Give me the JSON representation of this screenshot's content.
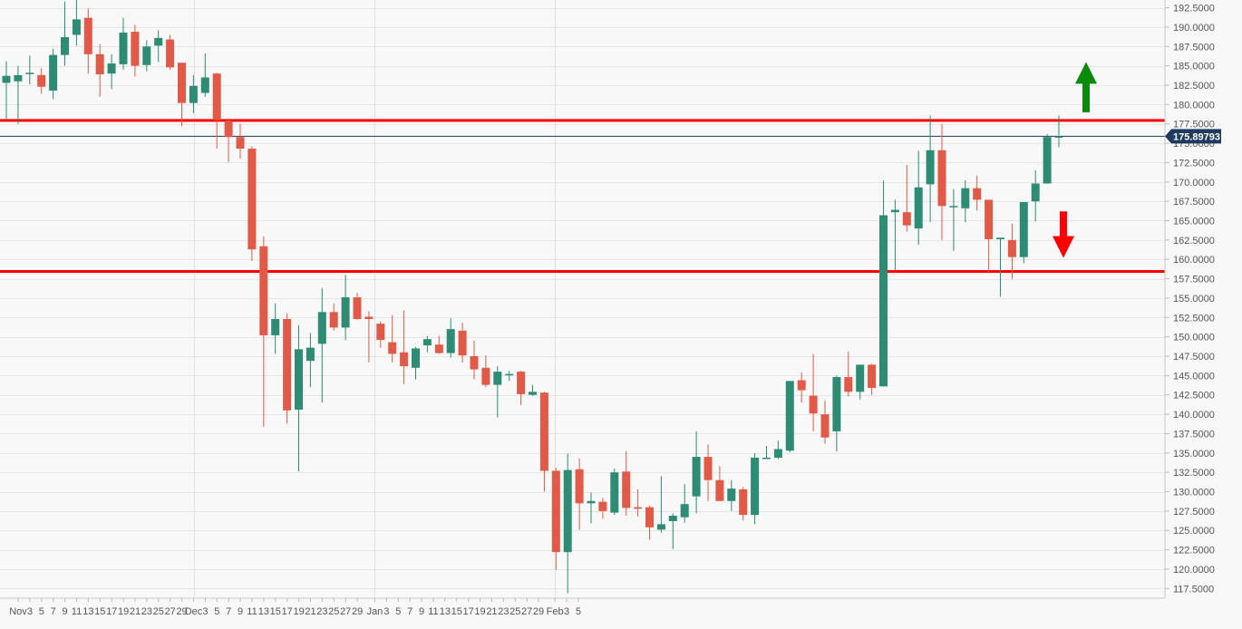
{
  "chart_data": {
    "type": "candlestick",
    "title": "",
    "xlabel": "",
    "ylabel": "",
    "ylim": [
      116.25,
      193.5
    ],
    "grid": true,
    "colors": {
      "up": "#2e8b74",
      "down": "#e05a47",
      "resistance": "#ff0000",
      "current_price_line": "#1f3a5c",
      "current_price_badge": "#1f3a5c",
      "arrow_up": "#0a8a0a",
      "arrow_down": "#ff0000"
    },
    "y_ticks": [
      117.5,
      120,
      122.5,
      125,
      127.5,
      130,
      132.5,
      135,
      137.5,
      140,
      142.5,
      145,
      147.5,
      150,
      152.5,
      155,
      157.5,
      160,
      162.5,
      165,
      167.5,
      170,
      172.5,
      175,
      177.5,
      180,
      182.5,
      185,
      187.5,
      190,
      192.5
    ],
    "y_tick_labels": [
      "117.5000",
      "120.0000",
      "122.5000",
      "125.0000",
      "127.5000",
      "130.0000",
      "132.5000",
      "135.0000",
      "137.5000",
      "140.0000",
      "142.5000",
      "145.0000",
      "147.5000",
      "150.0000",
      "152.5000",
      "155.0000",
      "157.5000",
      "160.0000",
      "162.5000",
      "165.0000",
      "167.5000",
      "170.0000",
      "172.5000",
      "175.0000",
      "177.5000",
      "180.0000",
      "182.5000",
      "185.0000",
      "187.5000",
      "190.0000",
      "192.5000"
    ],
    "x_tick_labels": [
      "Nov",
      "3",
      "5",
      "7",
      "9",
      "11",
      "13",
      "15",
      "17",
      "19",
      "21",
      "23",
      "25",
      "27",
      "29",
      "Dec",
      "3",
      "5",
      "7",
      "9",
      "11",
      "13",
      "15",
      "17",
      "19",
      "21",
      "23",
      "25",
      "27",
      "29",
      "Jan",
      "3",
      "5",
      "7",
      "9",
      "11",
      "13",
      "15",
      "17",
      "19",
      "21",
      "23",
      "25",
      "27",
      "29",
      "Feb",
      "3",
      "5"
    ],
    "x_tick_slots": [
      0,
      1,
      2,
      3,
      4,
      5,
      6,
      7,
      8,
      9,
      10,
      11,
      12,
      13,
      14,
      15,
      16,
      17,
      18,
      19,
      20,
      21,
      22,
      23,
      24,
      25,
      26,
      27,
      28,
      29,
      30.5,
      31.5,
      32.5,
      33.5,
      34.5,
      35.5,
      36.5,
      37.5,
      38.5,
      39.5,
      40.5,
      41.5,
      42.5,
      43.5,
      44.5,
      45.9,
      46.9,
      47.9
    ],
    "vertical_grid_labels": [
      "Dec",
      "Jan",
      "Feb"
    ],
    "candles": [
      {
        "o": 182.8,
        "h": 185.6,
        "l": 178.0,
        "c": 183.7
      },
      {
        "o": 183.0,
        "h": 185.0,
        "l": 177.5,
        "c": 183.8
      },
      {
        "o": 184.1,
        "h": 186.3,
        "l": 182.6,
        "c": 184.1
      },
      {
        "o": 183.8,
        "h": 184.7,
        "l": 181.4,
        "c": 182.3
      },
      {
        "o": 181.8,
        "h": 187.2,
        "l": 180.7,
        "c": 186.4
      },
      {
        "o": 186.4,
        "h": 193.3,
        "l": 185.0,
        "c": 188.7
      },
      {
        "o": 189.0,
        "h": 193.5,
        "l": 187.6,
        "c": 191.0
      },
      {
        "o": 191.2,
        "h": 192.4,
        "l": 184.0,
        "c": 186.5
      },
      {
        "o": 186.5,
        "h": 187.8,
        "l": 181.0,
        "c": 183.9
      },
      {
        "o": 184.0,
        "h": 186.5,
        "l": 182.0,
        "c": 185.3
      },
      {
        "o": 185.2,
        "h": 191.2,
        "l": 184.5,
        "c": 189.3
      },
      {
        "o": 189.4,
        "h": 190.3,
        "l": 183.6,
        "c": 185.0
      },
      {
        "o": 185.1,
        "h": 188.3,
        "l": 184.3,
        "c": 187.5
      },
      {
        "o": 187.6,
        "h": 189.6,
        "l": 185.5,
        "c": 188.6
      },
      {
        "o": 188.4,
        "h": 189.0,
        "l": 184.5,
        "c": 184.8
      },
      {
        "o": 185.4,
        "h": 185.3,
        "l": 177.2,
        "c": 180.2
      },
      {
        "o": 180.2,
        "h": 183.8,
        "l": 178.9,
        "c": 182.4
      },
      {
        "o": 181.5,
        "h": 186.6,
        "l": 181.0,
        "c": 183.5
      },
      {
        "o": 184.0,
        "h": 184.1,
        "l": 174.3,
        "c": 178.0
      },
      {
        "o": 177.9,
        "h": 178.2,
        "l": 172.6,
        "c": 175.8
      },
      {
        "o": 175.8,
        "h": 177.5,
        "l": 173.0,
        "c": 174.3
      },
      {
        "o": 174.3,
        "h": 174.6,
        "l": 159.8,
        "c": 161.3
      },
      {
        "o": 161.7,
        "h": 163.0,
        "l": 138.4,
        "c": 150.2
      },
      {
        "o": 150.2,
        "h": 154.3,
        "l": 147.8,
        "c": 152.3
      },
      {
        "o": 152.3,
        "h": 153.0,
        "l": 138.8,
        "c": 140.5
      },
      {
        "o": 140.6,
        "h": 151.5,
        "l": 132.6,
        "c": 148.4
      },
      {
        "o": 146.9,
        "h": 150.5,
        "l": 143.5,
        "c": 148.6
      },
      {
        "o": 149.1,
        "h": 156.3,
        "l": 141.5,
        "c": 153.2
      },
      {
        "o": 153.2,
        "h": 154.3,
        "l": 150.8,
        "c": 151.2
      },
      {
        "o": 151.2,
        "h": 158.0,
        "l": 149.6,
        "c": 155.1
      },
      {
        "o": 155.1,
        "h": 155.7,
        "l": 152.2,
        "c": 152.3
      },
      {
        "o": 152.6,
        "h": 153.3,
        "l": 146.7,
        "c": 152.3
      },
      {
        "o": 151.7,
        "h": 152.0,
        "l": 148.6,
        "c": 149.6
      },
      {
        "o": 149.3,
        "h": 152.8,
        "l": 146.7,
        "c": 147.8
      },
      {
        "o": 148.0,
        "h": 153.4,
        "l": 143.9,
        "c": 146.2
      },
      {
        "o": 146.0,
        "h": 148.7,
        "l": 144.5,
        "c": 148.5
      },
      {
        "o": 148.9,
        "h": 150.1,
        "l": 148.0,
        "c": 149.7
      },
      {
        "o": 149.0,
        "h": 150.1,
        "l": 147.8,
        "c": 147.9
      },
      {
        "o": 147.9,
        "h": 152.4,
        "l": 147.3,
        "c": 151.0
      },
      {
        "o": 150.8,
        "h": 151.8,
        "l": 146.7,
        "c": 147.6
      },
      {
        "o": 147.5,
        "h": 149.5,
        "l": 144.5,
        "c": 145.8
      },
      {
        "o": 146.0,
        "h": 147.6,
        "l": 143.5,
        "c": 143.8
      },
      {
        "o": 143.8,
        "h": 146.2,
        "l": 139.6,
        "c": 145.5
      },
      {
        "o": 145.2,
        "h": 145.6,
        "l": 144.3,
        "c": 145.2
      },
      {
        "o": 145.5,
        "h": 145.6,
        "l": 141.2,
        "c": 142.6
      },
      {
        "o": 142.5,
        "h": 143.8,
        "l": 142.4,
        "c": 142.9
      },
      {
        "o": 142.8,
        "h": 142.9,
        "l": 130.0,
        "c": 132.7
      },
      {
        "o": 132.7,
        "h": 133.1,
        "l": 119.9,
        "c": 122.2
      },
      {
        "o": 122.2,
        "h": 134.9,
        "l": 116.9,
        "c": 132.8
      },
      {
        "o": 132.9,
        "h": 134.3,
        "l": 125.1,
        "c": 128.5
      },
      {
        "o": 128.5,
        "h": 129.9,
        "l": 125.9,
        "c": 128.8
      },
      {
        "o": 128.7,
        "h": 129.2,
        "l": 126.5,
        "c": 127.5
      },
      {
        "o": 127.3,
        "h": 133.0,
        "l": 127.0,
        "c": 132.5
      },
      {
        "o": 132.6,
        "h": 135.2,
        "l": 126.9,
        "c": 127.9
      },
      {
        "o": 128.0,
        "h": 130.3,
        "l": 126.8,
        "c": 127.8
      },
      {
        "o": 128.0,
        "h": 128.2,
        "l": 123.8,
        "c": 125.4
      },
      {
        "o": 125.1,
        "h": 132.0,
        "l": 124.7,
        "c": 125.8
      },
      {
        "o": 126.2,
        "h": 127.2,
        "l": 122.6,
        "c": 126.9
      },
      {
        "o": 126.7,
        "h": 131.0,
        "l": 126.0,
        "c": 128.4
      },
      {
        "o": 129.4,
        "h": 137.8,
        "l": 127.2,
        "c": 134.5
      },
      {
        "o": 134.5,
        "h": 136.1,
        "l": 128.8,
        "c": 131.5
      },
      {
        "o": 131.5,
        "h": 133.3,
        "l": 128.9,
        "c": 128.8
      },
      {
        "o": 128.8,
        "h": 131.5,
        "l": 127.5,
        "c": 130.4
      },
      {
        "o": 130.3,
        "h": 130.6,
        "l": 126.3,
        "c": 127.0
      },
      {
        "o": 127.0,
        "h": 135.0,
        "l": 125.8,
        "c": 134.4
      },
      {
        "o": 134.4,
        "h": 135.9,
        "l": 134.3,
        "c": 134.4
      },
      {
        "o": 134.4,
        "h": 136.6,
        "l": 134.2,
        "c": 135.5
      },
      {
        "o": 135.3,
        "h": 144.1,
        "l": 135.1,
        "c": 144.3
      },
      {
        "o": 144.4,
        "h": 145.4,
        "l": 141.5,
        "c": 143.1
      },
      {
        "o": 142.4,
        "h": 147.8,
        "l": 137.8,
        "c": 140.1
      },
      {
        "o": 140.0,
        "h": 141.8,
        "l": 136.2,
        "c": 137.0
      },
      {
        "o": 137.8,
        "h": 145.0,
        "l": 135.2,
        "c": 144.8
      },
      {
        "o": 144.8,
        "h": 148.1,
        "l": 142.3,
        "c": 142.9
      },
      {
        "o": 142.9,
        "h": 146.3,
        "l": 141.9,
        "c": 146.4
      },
      {
        "o": 146.4,
        "h": 146.5,
        "l": 142.5,
        "c": 143.4
      },
      {
        "o": 143.6,
        "h": 170.2,
        "l": 143.6,
        "c": 165.7
      },
      {
        "o": 166.1,
        "h": 167.7,
        "l": 158.6,
        "c": 166.4
      },
      {
        "o": 166.1,
        "h": 172.2,
        "l": 163.6,
        "c": 164.4
      },
      {
        "o": 164.0,
        "h": 174.0,
        "l": 161.9,
        "c": 169.3
      },
      {
        "o": 169.7,
        "h": 178.6,
        "l": 164.8,
        "c": 174.1
      },
      {
        "o": 174.1,
        "h": 177.5,
        "l": 162.5,
        "c": 166.9
      },
      {
        "o": 166.9,
        "h": 169.1,
        "l": 161.1,
        "c": 166.9
      },
      {
        "o": 166.6,
        "h": 170.2,
        "l": 164.8,
        "c": 169.2
      },
      {
        "o": 169.2,
        "h": 170.8,
        "l": 166.3,
        "c": 167.7
      },
      {
        "o": 167.7,
        "h": 167.3,
        "l": 158.4,
        "c": 162.6
      },
      {
        "o": 162.6,
        "h": 162.6,
        "l": 155.2,
        "c": 162.8
      },
      {
        "o": 162.5,
        "h": 164.6,
        "l": 157.5,
        "c": 160.3
      },
      {
        "o": 160.3,
        "h": 167.4,
        "l": 159.5,
        "c": 167.4
      },
      {
        "o": 167.5,
        "h": 171.5,
        "l": 164.9,
        "c": 169.8
      },
      {
        "o": 169.8,
        "h": 176.2,
        "l": 170.5,
        "c": 175.8
      },
      {
        "o": 175.8,
        "h": 178.6,
        "l": 174.5,
        "c": 175.9
      }
    ],
    "horizontal_lines": [
      {
        "kind": "resistance",
        "value": 177.95
      },
      {
        "kind": "support",
        "value": 158.45
      }
    ],
    "current_price": 175.89793,
    "current_price_label": "175.89793",
    "arrows": [
      {
        "direction": "up",
        "color": "#0a8a0a",
        "from": 179.0,
        "to": 185.5
      },
      {
        "direction": "down",
        "color": "#ff0000",
        "from": 166.2,
        "to": 160.2
      }
    ]
  }
}
